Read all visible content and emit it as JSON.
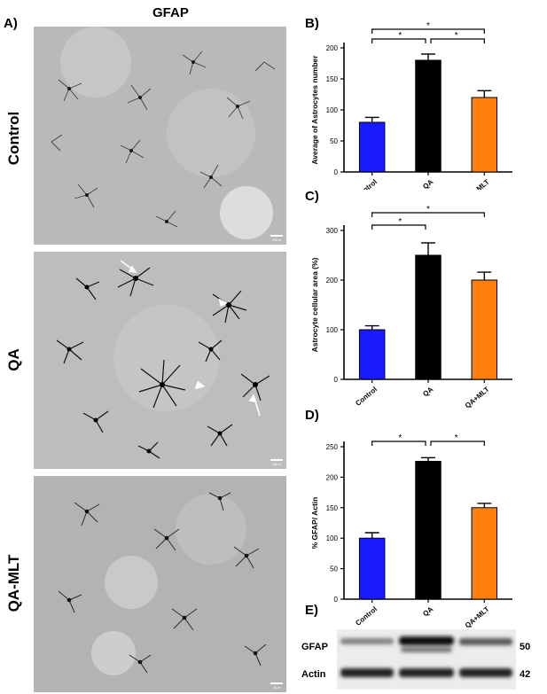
{
  "figure": {
    "panel_a": {
      "letter": "A)",
      "column_title": "GFAP",
      "rows": [
        {
          "label": "Control",
          "scale": "10µm"
        },
        {
          "label": "QA",
          "scale": "10µm"
        },
        {
          "label": "QA-MLT",
          "scale": "10µm"
        }
      ]
    },
    "panel_e": {
      "letter": "E)",
      "bands": [
        {
          "label": "GFAP",
          "kda": "50"
        },
        {
          "label": "Actin",
          "kda": "42"
        }
      ]
    }
  },
  "chart_data": [
    {
      "id": "B",
      "letter": "B)",
      "type": "bar",
      "categories": [
        "Control",
        "QA",
        "QA+MLT"
      ],
      "values": [
        80,
        180,
        120
      ],
      "errors": [
        8,
        10,
        11
      ],
      "colors": [
        "#1a1aff",
        "#000000",
        "#ff7f0e"
      ],
      "ylabel": "Average of Astrocytes number",
      "ylim": [
        0,
        200
      ],
      "yticks": [
        0,
        50,
        100,
        150,
        200
      ],
      "significance": [
        {
          "from": 0,
          "to": 1,
          "level": 1,
          "mark": "*"
        },
        {
          "from": 1,
          "to": 2,
          "level": 1,
          "mark": "*"
        },
        {
          "from": 0,
          "to": 2,
          "level": 2,
          "mark": "*"
        }
      ]
    },
    {
      "id": "C",
      "letter": "C)",
      "type": "bar",
      "categories": [
        "Control",
        "QA",
        "QA+MLT"
      ],
      "values": [
        100,
        250,
        200
      ],
      "errors": [
        8,
        25,
        16
      ],
      "colors": [
        "#1a1aff",
        "#000000",
        "#ff7f0e"
      ],
      "ylabel": "Astrocyte cellular area (%)",
      "ylim": [
        0,
        300
      ],
      "yticks": [
        0,
        100,
        200,
        300
      ],
      "significance": [
        {
          "from": 0,
          "to": 1,
          "level": 1,
          "mark": "*"
        },
        {
          "from": 0,
          "to": 2,
          "level": 2,
          "mark": "*"
        }
      ]
    },
    {
      "id": "D",
      "letter": "D)",
      "type": "bar",
      "categories": [
        "Control",
        "QA",
        "QA+MLT"
      ],
      "values": [
        100,
        226,
        150
      ],
      "errors": [
        9,
        6,
        7
      ],
      "colors": [
        "#1a1aff",
        "#000000",
        "#ff7f0e"
      ],
      "ylabel": "% GFAP/ Actin",
      "ylim": [
        0,
        250
      ],
      "yticks": [
        0,
        50,
        100,
        150,
        200,
        250
      ],
      "significance": [
        {
          "from": 0,
          "to": 1,
          "level": 1,
          "mark": "*"
        },
        {
          "from": 1,
          "to": 2,
          "level": 1,
          "mark": "*"
        }
      ]
    }
  ]
}
